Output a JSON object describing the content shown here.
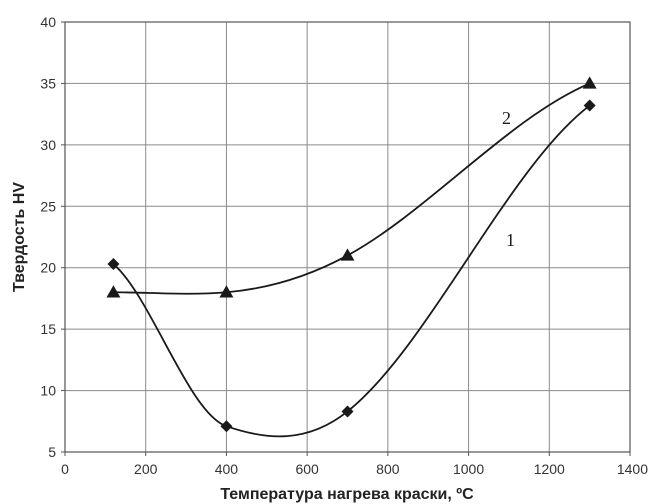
{
  "chart_data": {
    "type": "line",
    "title": "",
    "xlabel": "Температура нагрева краски, ºC",
    "ylabel": "Твердость HV",
    "xlim": [
      0,
      1400
    ],
    "ylim": [
      5,
      40
    ],
    "x_ticks": [
      0,
      200,
      400,
      600,
      800,
      1000,
      1200,
      1400
    ],
    "y_ticks": [
      5,
      10,
      15,
      20,
      25,
      30,
      35,
      40
    ],
    "grid": true,
    "smooth": true,
    "series": [
      {
        "name": "1",
        "marker": "diamond",
        "color": "#1a1a1a",
        "x": [
          120,
          400,
          700,
          1300
        ],
        "y": [
          20.3,
          7.1,
          8.3,
          33.2
        ]
      },
      {
        "name": "2",
        "marker": "triangle",
        "color": "#1a1a1a",
        "x": [
          120,
          400,
          700,
          1300
        ],
        "y": [
          18,
          18,
          21,
          35
        ]
      }
    ]
  }
}
